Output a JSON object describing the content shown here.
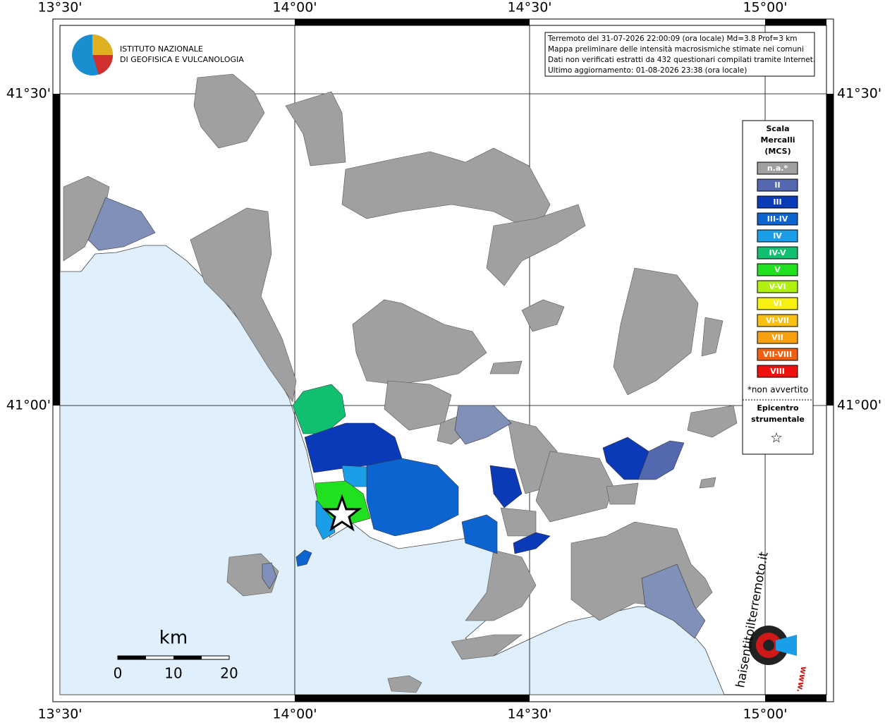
{
  "axes": {
    "longitude_labels": [
      "13°30'",
      "14°00'",
      "14°30'",
      "15°00'"
    ],
    "latitude_labels": [
      "41°30'",
      "41°00'"
    ]
  },
  "logo": {
    "lines": [
      "ISTITUTO NAZIONALE",
      "DI GEOFISICA E VULCANOLOGIA"
    ]
  },
  "info": {
    "lines": [
      "Terremoto del 31-07-2026 22:00:09 (ora locale) Md=3.8 Prof=3 km",
      "Mappa preliminare delle intensità macrosismiche stimate nei comuni",
      "Dati non verificati estratti da 432 questionari compilati tramite Internet.",
      "Ultimo aggiornamento: 01-08-2026 23:38 (ora locale)"
    ]
  },
  "legend": {
    "title": [
      "Scala",
      "Mercalli",
      "(MCS)"
    ],
    "items": [
      {
        "label": "n.a.*",
        "color": "#a0a0a0"
      },
      {
        "label": "II",
        "color": "#5468b0"
      },
      {
        "label": "III",
        "color": "#0a3ab8"
      },
      {
        "label": "III-IV",
        "color": "#0c64d0"
      },
      {
        "label": "IV",
        "color": "#1a9ee8"
      },
      {
        "label": "IV-V",
        "color": "#10c070"
      },
      {
        "label": "V",
        "color": "#20e020"
      },
      {
        "label": "V-VI",
        "color": "#b0f010"
      },
      {
        "label": "VI",
        "color": "#f8f010"
      },
      {
        "label": "VI-VII",
        "color": "#f8c010"
      },
      {
        "label": "VII",
        "color": "#f8a010"
      },
      {
        "label": "VII-VIII",
        "color": "#f06010"
      },
      {
        "label": "VIII",
        "color": "#f01010"
      }
    ],
    "footnote": "*non avvertito",
    "epicentre": [
      "Epicentro",
      "strumentale"
    ],
    "star": "☆"
  },
  "scale_bar": {
    "unit": "km",
    "labels": [
      "0",
      "10",
      "20"
    ]
  },
  "website": {
    "prefix": "www.",
    "name": "haisentitoilterremoto.it"
  }
}
